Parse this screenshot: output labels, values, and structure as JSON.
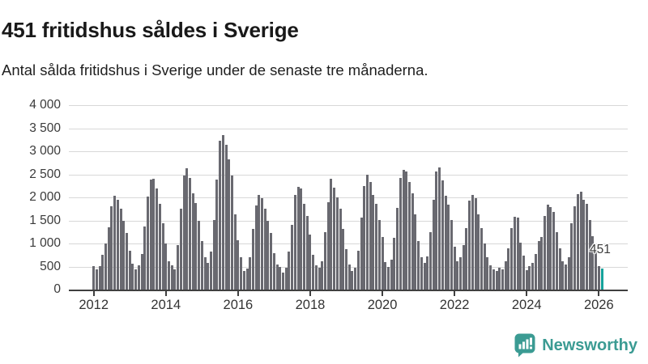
{
  "header": {
    "title": "451 fritidshus såldes i Sverige",
    "subtitle": "Antal sålda fritidshus i Sverige under de senaste tre månaderna."
  },
  "chart_data": {
    "type": "bar",
    "title": "451 fritidshus såldes i Sverige",
    "xlabel": "",
    "ylabel": "",
    "ylim": [
      0,
      4000
    ],
    "grid": "horizontal",
    "x_start": "2012-01",
    "frequency": "monthly",
    "bar_color": "#696970",
    "highlight": {
      "index": 169,
      "color": "#16a29b",
      "label": "451"
    },
    "yticks": [
      {
        "value": 0,
        "label": "0"
      },
      {
        "value": 500,
        "label": "500"
      },
      {
        "value": 1000,
        "label": "1 000"
      },
      {
        "value": 1500,
        "label": "1 500"
      },
      {
        "value": 2000,
        "label": "2 000"
      },
      {
        "value": 2500,
        "label": "2 500"
      },
      {
        "value": 3000,
        "label": "3 000"
      },
      {
        "value": 3500,
        "label": "3 500"
      },
      {
        "value": 4000,
        "label": "4 000"
      }
    ],
    "xticks": [
      {
        "label": "2012",
        "month_index": 0
      },
      {
        "label": "2014",
        "month_index": 24
      },
      {
        "label": "2016",
        "month_index": 48
      },
      {
        "label": "2018",
        "month_index": 72
      },
      {
        "label": "2020",
        "month_index": 96
      },
      {
        "label": "2022",
        "month_index": 120
      },
      {
        "label": "2024",
        "month_index": 144
      },
      {
        "label": "2026",
        "month_index": 168
      }
    ],
    "values": [
      510,
      430,
      515,
      755,
      1005,
      1355,
      1805,
      2040,
      1940,
      1760,
      1500,
      1235,
      840,
      570,
      445,
      520,
      765,
      1370,
      2010,
      2390,
      2410,
      2185,
      1865,
      1430,
      1005,
      610,
      520,
      445,
      960,
      1750,
      2470,
      2625,
      2420,
      2090,
      1880,
      1500,
      1060,
      700,
      580,
      820,
      1505,
      2390,
      3225,
      3355,
      3135,
      2830,
      2475,
      1630,
      1075,
      695,
      400,
      455,
      695,
      1320,
      1830,
      2060,
      1980,
      1750,
      1500,
      1220,
      785,
      545,
      485,
      375,
      475,
      825,
      1395,
      2060,
      2230,
      2200,
      1865,
      1600,
      1195,
      755,
      520,
      475,
      620,
      1250,
      1900,
      2400,
      2205,
      1995,
      1750,
      1320,
      870,
      550,
      405,
      475,
      835,
      1570,
      2245,
      2490,
      2330,
      2050,
      1865,
      1505,
      1145,
      590,
      490,
      655,
      1125,
      1770,
      2415,
      2590,
      2555,
      2330,
      2080,
      1630,
      1045,
      705,
      580,
      725,
      1250,
      1955,
      2565,
      2655,
      2360,
      2030,
      1835,
      1505,
      930,
      620,
      695,
      960,
      1340,
      1925,
      2050,
      1980,
      1630,
      1340,
      1005,
      695,
      520,
      445,
      405,
      475,
      445,
      610,
      900,
      1340,
      1585,
      1570,
      1015,
      735,
      420,
      505,
      580,
      765,
      1045,
      1145,
      1590,
      1835,
      1795,
      1680,
      1250,
      900,
      610,
      545,
      695,
      1430,
      1805,
      2070,
      2115,
      1955,
      1855,
      1505,
      1150,
      870,
      505,
      451
    ]
  },
  "footer": {
    "brand": "Newsworthy",
    "brand_color": "#3b9b93"
  }
}
